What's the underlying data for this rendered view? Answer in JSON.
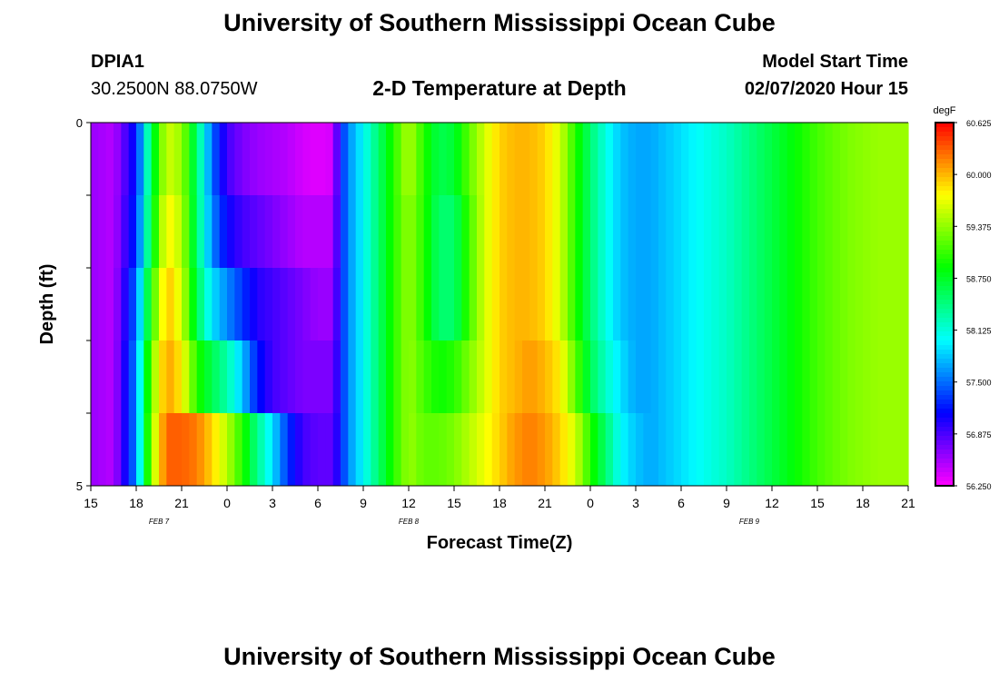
{
  "header": {
    "title": "University of Southern Mississippi Ocean Cube",
    "station_id": "DPIA1",
    "station_coords": "30.2500N 88.0750W",
    "plot_title": "2-D Temperature at Depth",
    "model_label": "Model Start Time",
    "model_time": "02/07/2020 Hour 15"
  },
  "footer": {
    "title": "University of Southern Mississippi Ocean Cube"
  },
  "chart_data": {
    "type": "heatmap",
    "title": "2-D Temperature at Depth",
    "xlabel": "Forecast Time(Z)",
    "ylabel": "Depth (ft)",
    "x_tick_labels": [
      "15",
      "18",
      "21",
      "0",
      "3",
      "6",
      "9",
      "12",
      "15",
      "18",
      "21",
      "0",
      "3",
      "6",
      "9",
      "12",
      "15",
      "18",
      "21"
    ],
    "x_tick_hours": [
      0,
      3,
      6,
      9,
      12,
      15,
      18,
      21,
      24,
      27,
      30,
      33,
      36,
      39,
      42,
      45,
      48,
      51,
      54
    ],
    "date_labels": [
      {
        "label": "FEB 7",
        "hour": 4.5
      },
      {
        "label": "FEB 8",
        "hour": 21
      },
      {
        "label": "FEB 9",
        "hour": 43.5
      }
    ],
    "y_tick_labels": [
      "0",
      "5"
    ],
    "ylim": [
      0,
      5
    ],
    "xlim_hours": [
      0,
      54
    ],
    "colorbar": {
      "unit": "degF",
      "min": 56.25,
      "max": 60.625,
      "tick_labels": [
        "60.625",
        "60.000",
        "59.375",
        "58.750",
        "58.125",
        "57.500",
        "56.875",
        "56.250"
      ],
      "tick_values": [
        60.625,
        60.0,
        59.375,
        58.75,
        58.125,
        57.5,
        56.875,
        56.25
      ]
    },
    "depth_bands": [
      0,
      1,
      2,
      3,
      4,
      5
    ],
    "series": [
      {
        "name": "layer 0-1 ft",
        "hours": [
          0,
          1.5,
          3,
          4,
          5,
          6,
          7,
          8,
          9,
          10,
          11,
          12,
          13,
          14,
          15,
          16,
          16.5,
          17,
          18,
          19,
          20,
          21,
          22,
          23,
          24,
          25,
          26,
          27,
          28,
          29,
          30,
          31,
          32,
          33,
          34,
          35,
          36,
          37,
          38,
          39,
          40,
          42,
          44,
          46,
          48,
          50,
          52,
          54
        ],
        "values": [
          56.6,
          56.5,
          57.2,
          58.6,
          59.6,
          59.4,
          58.5,
          57.5,
          56.9,
          56.7,
          56.6,
          56.55,
          56.5,
          56.4,
          56.35,
          56.4,
          57.2,
          57.6,
          58.0,
          58.5,
          59.0,
          59.5,
          59.0,
          58.6,
          58.7,
          59.2,
          59.6,
          59.9,
          60.0,
          60.0,
          59.9,
          59.6,
          59.0,
          58.5,
          58.1,
          57.8,
          57.7,
          57.7,
          57.8,
          57.9,
          58.0,
          58.2,
          58.5,
          58.8,
          59.1,
          59.3,
          59.4,
          59.4
        ]
      },
      {
        "name": "layer 1-2 ft",
        "hours": [
          0,
          1.5,
          3,
          4,
          5,
          6,
          7,
          8,
          9,
          10,
          11,
          12,
          13,
          14,
          15,
          16,
          16.5,
          17,
          18,
          19,
          20,
          21,
          22,
          23,
          24,
          25,
          26,
          27,
          28,
          29,
          30,
          31,
          32,
          33,
          34,
          35,
          36,
          37,
          38,
          39,
          40,
          42,
          44,
          46,
          48,
          50,
          52,
          54
        ],
        "values": [
          56.6,
          56.5,
          57.3,
          58.7,
          59.8,
          59.5,
          58.5,
          57.6,
          57.1,
          56.9,
          56.8,
          56.7,
          56.6,
          56.5,
          56.5,
          56.5,
          57.2,
          57.6,
          58.0,
          58.5,
          59.0,
          59.4,
          59.0,
          58.5,
          58.5,
          59.1,
          59.6,
          59.9,
          60.0,
          60.0,
          59.9,
          59.6,
          59.0,
          58.5,
          58.1,
          57.8,
          57.7,
          57.7,
          57.8,
          57.9,
          58.0,
          58.2,
          58.5,
          58.8,
          59.1,
          59.3,
          59.4,
          59.4
        ]
      },
      {
        "name": "layer 2-3 ft",
        "hours": [
          0,
          1.5,
          3,
          4,
          5,
          6,
          7,
          8,
          9,
          10,
          11,
          12,
          13,
          14,
          15,
          16,
          16.5,
          17,
          18,
          19,
          20,
          21,
          22,
          23,
          24,
          25,
          26,
          27,
          28,
          29,
          30,
          31,
          32,
          33,
          34,
          35,
          36,
          37,
          38,
          39,
          40,
          42,
          44,
          46,
          48,
          50,
          52,
          54
        ],
        "values": [
          56.6,
          56.5,
          57.5,
          59.0,
          60.0,
          59.6,
          58.6,
          57.9,
          57.6,
          57.3,
          57.0,
          56.9,
          56.8,
          56.7,
          56.6,
          56.6,
          57.2,
          57.6,
          58.0,
          58.5,
          59.0,
          59.4,
          59.0,
          58.5,
          58.5,
          59.1,
          59.6,
          59.9,
          60.0,
          60.0,
          59.9,
          59.6,
          59.0,
          58.5,
          58.1,
          57.8,
          57.7,
          57.7,
          57.8,
          57.9,
          58.0,
          58.2,
          58.5,
          58.8,
          59.1,
          59.3,
          59.4,
          59.4
        ]
      },
      {
        "name": "layer 3-4 ft",
        "hours": [
          0,
          1.5,
          3,
          4,
          5,
          6,
          7,
          8,
          9,
          10,
          11,
          12,
          13,
          14,
          15,
          16,
          16.5,
          17,
          18,
          19,
          20,
          21,
          22,
          23,
          24,
          25,
          26,
          27,
          28,
          29,
          30,
          31,
          32,
          33,
          34,
          35,
          36,
          37,
          38,
          39,
          40,
          42,
          44,
          46,
          48,
          50,
          52,
          54
        ],
        "values": [
          56.6,
          56.5,
          57.6,
          59.3,
          60.1,
          59.8,
          59.0,
          58.6,
          58.3,
          57.8,
          57.2,
          56.9,
          56.8,
          56.7,
          56.7,
          56.7,
          57.2,
          57.6,
          58.0,
          58.5,
          59.0,
          59.4,
          59.1,
          58.9,
          59.0,
          59.3,
          59.6,
          59.9,
          60.0,
          60.1,
          60.0,
          59.8,
          59.2,
          58.6,
          58.2,
          57.9,
          57.7,
          57.7,
          57.8,
          57.9,
          58.0,
          58.2,
          58.5,
          58.8,
          59.1,
          59.3,
          59.4,
          59.4
        ]
      },
      {
        "name": "layer 4-5 ft",
        "hours": [
          0,
          1.5,
          3,
          4,
          5,
          6,
          7,
          8,
          9,
          10,
          11,
          12,
          13,
          14,
          15,
          16,
          16.5,
          17,
          18,
          19,
          20,
          21,
          22,
          23,
          24,
          25,
          26,
          27,
          28,
          29,
          30,
          31,
          32,
          33,
          34,
          35,
          36,
          37,
          38,
          39,
          40,
          42,
          44,
          46,
          48,
          50,
          52,
          54
        ],
        "values": [
          56.6,
          56.5,
          57.6,
          59.4,
          60.3,
          60.3,
          60.2,
          59.9,
          59.5,
          59.0,
          58.4,
          57.9,
          57.3,
          56.9,
          56.8,
          56.8,
          57.2,
          57.6,
          58.0,
          58.5,
          59.0,
          59.4,
          59.2,
          59.2,
          59.3,
          59.5,
          59.7,
          59.9,
          60.1,
          60.2,
          60.1,
          59.9,
          59.6,
          59.0,
          58.5,
          58.0,
          57.8,
          57.7,
          57.8,
          57.9,
          58.0,
          58.2,
          58.5,
          58.8,
          59.1,
          59.3,
          59.4,
          59.4
        ]
      }
    ]
  }
}
